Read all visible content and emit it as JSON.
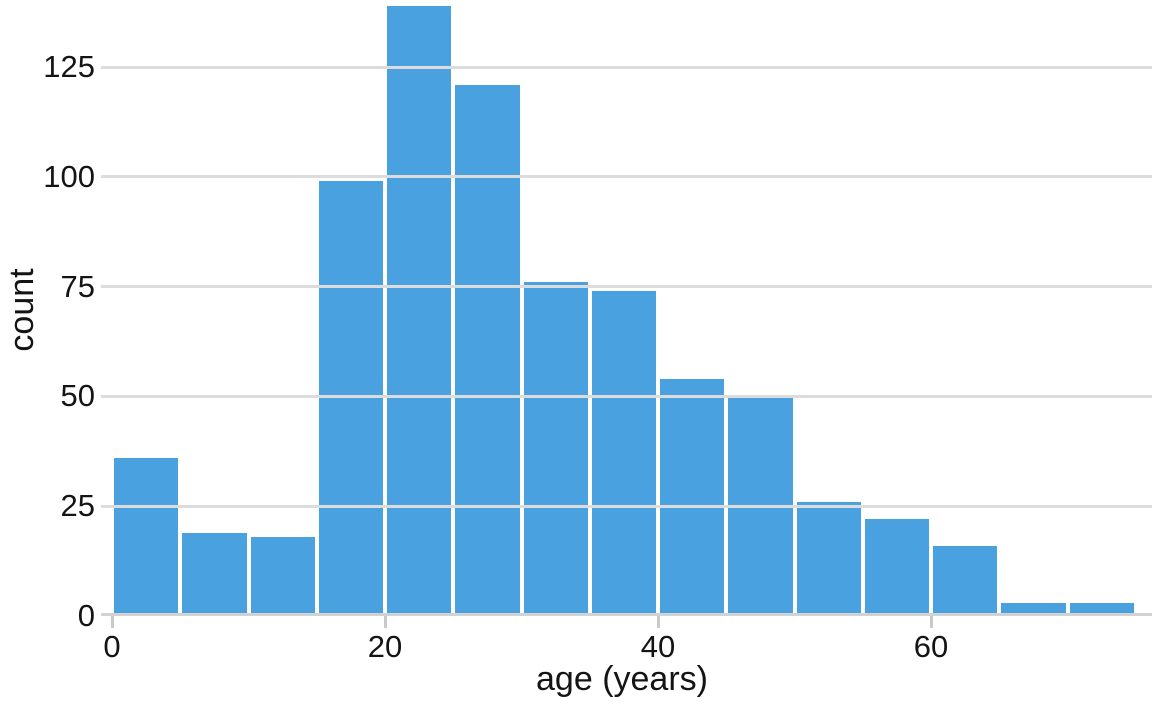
{
  "chart_data": {
    "type": "bar",
    "subtype": "histogram",
    "title": "",
    "xlabel": "age (years)",
    "ylabel": "count",
    "bin_edges": [
      0,
      5,
      10,
      15,
      20,
      25,
      30,
      35,
      40,
      45,
      50,
      55,
      60,
      65,
      70,
      75
    ],
    "categories": [
      "0-5",
      "5-10",
      "10-15",
      "15-20",
      "20-25",
      "25-30",
      "30-35",
      "35-40",
      "40-45",
      "45-50",
      "50-55",
      "55-60",
      "60-65",
      "65-70",
      "70-75"
    ],
    "values": [
      36,
      19,
      18,
      99,
      139,
      121,
      76,
      74,
      54,
      50,
      26,
      22,
      16,
      3,
      3
    ],
    "x_ticks": [
      "0",
      "20",
      "40",
      "60"
    ],
    "x_tick_values": [
      0,
      20,
      40,
      60
    ],
    "y_ticks": [
      "0",
      "25",
      "50",
      "75",
      "100",
      "125"
    ],
    "y_tick_values": [
      0,
      25,
      50,
      75,
      100,
      125
    ],
    "xlim": [
      0,
      76.2
    ],
    "ylim": [
      0,
      140
    ],
    "grid": "horizontal",
    "legend": "none",
    "colors": {
      "bar": "#49a2df",
      "gridline": "#dcdcdc",
      "axis_line": "#d2d2d2",
      "tick_mark": "#c9c9c9",
      "text": "#141414"
    }
  }
}
